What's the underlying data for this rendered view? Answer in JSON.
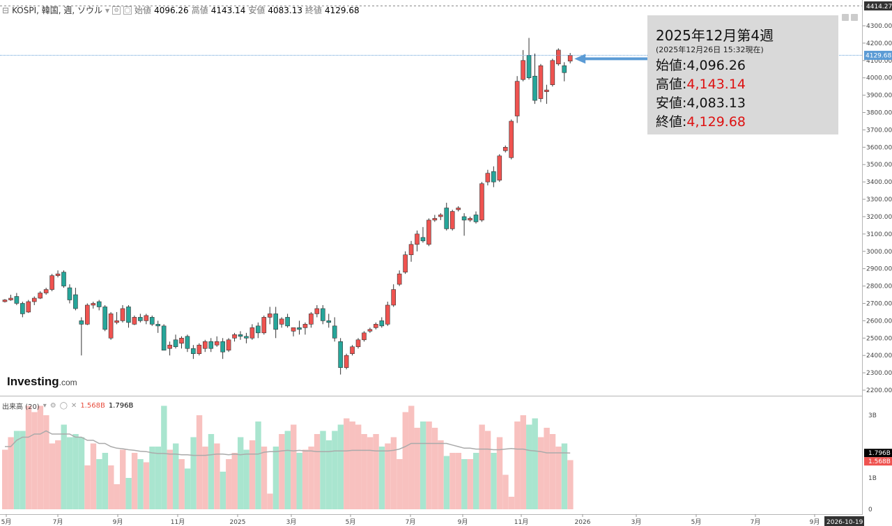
{
  "header": {
    "symbol": "KOSPI, 韓国, 週, ソウル",
    "open_label": "始値",
    "open": "4096.26",
    "high_label": "高値",
    "high": "4143.14",
    "low_label": "安値",
    "low": "4083.13",
    "close_label": "終値",
    "close": "4129.68"
  },
  "volume_header": {
    "label": "出来高 (20)",
    "vol": "1.568B",
    "ma": "1.796B"
  },
  "logo": {
    "main": "Investing",
    "suffix": ".com"
  },
  "info_box": {
    "title": "2025年12月第4週",
    "subtitle": "(2025年12月26日 15:32現在)",
    "open_label": "始値:",
    "open": "4,096.26",
    "high_label": "高値:",
    "high": "4,143.14",
    "low_label": "安値:",
    "low": "4,083.13",
    "close_label": "終値:",
    "close": "4,129.68"
  },
  "price_axis": {
    "top_label": "4414.27",
    "current_label": "4129.68",
    "ticks": [
      "4300.00",
      "4200.00",
      "4100.00",
      "4000.00",
      "3900.00",
      "3800.00",
      "3700.00",
      "3600.00",
      "3500.00",
      "3400.00",
      "3300.00",
      "3200.00",
      "3100.00",
      "3000.00",
      "2900.00",
      "2800.00",
      "2700.00",
      "2600.00",
      "2500.00",
      "2400.00",
      "2300.00",
      "2200.00"
    ]
  },
  "volume_axis": {
    "ticks": [
      "3B",
      "1B",
      "0"
    ],
    "ma_label": "1.796B",
    "vol_label": "1.568B"
  },
  "time_axis": {
    "labels": [
      "5月",
      "7月",
      "9月",
      "11月",
      "2025",
      "3月",
      "5月",
      "7月",
      "9月",
      "11月",
      "2026",
      "3月",
      "5月",
      "7月",
      "9月"
    ],
    "current_label": "2026-10-19"
  },
  "colors": {
    "up": "#ef5350",
    "down": "#26a69a",
    "vol_up": "#f8c1bf",
    "vol_down": "#a9e5cf",
    "arrow": "#5b9bd5"
  },
  "chart_data": {
    "type": "candlestick",
    "title": "KOSPI, 韓国, 週, ソウル",
    "ylim": [
      2200,
      4400
    ],
    "volume_ylim": [
      0,
      3.5
    ],
    "volume_unit": "B",
    "candles": [
      {
        "o": 2710,
        "h": 2725,
        "l": 2705,
        "c": 2720,
        "v": 1.9
      },
      {
        "o": 2720,
        "h": 2750,
        "l": 2715,
        "c": 2730,
        "v": 2.3
      },
      {
        "o": 2740,
        "h": 2760,
        "l": 2690,
        "c": 2700,
        "v": 2.5
      },
      {
        "o": 2700,
        "h": 2710,
        "l": 2620,
        "c": 2640,
        "v": 2.5
      },
      {
        "o": 2650,
        "h": 2720,
        "l": 2645,
        "c": 2710,
        "v": 3.3
      },
      {
        "o": 2710,
        "h": 2740,
        "l": 2690,
        "c": 2730,
        "v": 3.1
      },
      {
        "o": 2730,
        "h": 2770,
        "l": 2725,
        "c": 2760,
        "v": 3.3
      },
      {
        "o": 2760,
        "h": 2790,
        "l": 2750,
        "c": 2780,
        "v": 3.0
      },
      {
        "o": 2780,
        "h": 2870,
        "l": 2770,
        "c": 2860,
        "v": 2.1
      },
      {
        "o": 2860,
        "h": 2890,
        "l": 2850,
        "c": 2870,
        "v": 2.2
      },
      {
        "o": 2880,
        "h": 2890,
        "l": 2790,
        "c": 2800,
        "v": 2.7
      },
      {
        "o": 2790,
        "h": 2810,
        "l": 2700,
        "c": 2720,
        "v": 2.3
      },
      {
        "o": 2750,
        "h": 2790,
        "l": 2660,
        "c": 2670,
        "v": 2.4
      },
      {
        "o": 2600,
        "h": 2620,
        "l": 2400,
        "c": 2580,
        "v": 2.3
      },
      {
        "o": 2580,
        "h": 2700,
        "l": 2575,
        "c": 2690,
        "v": 1.4
      },
      {
        "o": 2690,
        "h": 2710,
        "l": 2670,
        "c": 2700,
        "v": 2.1
      },
      {
        "o": 2710,
        "h": 2720,
        "l": 2660,
        "c": 2680,
        "v": 1.6
      },
      {
        "o": 2680,
        "h": 2690,
        "l": 2540,
        "c": 2550,
        "v": 1.8
      },
      {
        "o": 2500,
        "h": 2650,
        "l": 2490,
        "c": 2640,
        "v": 1.4
      },
      {
        "o": 2590,
        "h": 2650,
        "l": 2580,
        "c": 2600,
        "v": 0.8
      },
      {
        "o": 2600,
        "h": 2690,
        "l": 2590,
        "c": 2670,
        "v": 1.9
      },
      {
        "o": 2680,
        "h": 2690,
        "l": 2560,
        "c": 2590,
        "v": 1.0
      },
      {
        "o": 2580,
        "h": 2630,
        "l": 2575,
        "c": 2620,
        "v": 1.8
      },
      {
        "o": 2620,
        "h": 2640,
        "l": 2590,
        "c": 2600,
        "v": 1.6
      },
      {
        "o": 2600,
        "h": 2640,
        "l": 2580,
        "c": 2630,
        "v": 1.5
      },
      {
        "o": 2620,
        "h": 2630,
        "l": 2570,
        "c": 2580,
        "v": 2.0
      },
      {
        "o": 2580,
        "h": 2600,
        "l": 2530,
        "c": 2570,
        "v": 2.0
      },
      {
        "o": 2570,
        "h": 2580,
        "l": 2430,
        "c": 2430,
        "v": 3.3
      },
      {
        "o": 2440,
        "h": 2480,
        "l": 2400,
        "c": 2460,
        "v": 1.9
      },
      {
        "o": 2490,
        "h": 2520,
        "l": 2440,
        "c": 2450,
        "v": 2.1
      },
      {
        "o": 2470,
        "h": 2510,
        "l": 2440,
        "c": 2500,
        "v": 1.6
      },
      {
        "o": 2510,
        "h": 2520,
        "l": 2420,
        "c": 2440,
        "v": 1.3
      },
      {
        "o": 2440,
        "h": 2460,
        "l": 2380,
        "c": 2410,
        "v": 2.3
      },
      {
        "o": 2410,
        "h": 2470,
        "l": 2400,
        "c": 2460,
        "v": 3.0
      },
      {
        "o": 2440,
        "h": 2490,
        "l": 2420,
        "c": 2480,
        "v": 2.0
      },
      {
        "o": 2480,
        "h": 2500,
        "l": 2420,
        "c": 2440,
        "v": 2.4
      },
      {
        "o": 2460,
        "h": 2510,
        "l": 2450,
        "c": 2480,
        "v": 2.1
      },
      {
        "o": 2480,
        "h": 2500,
        "l": 2380,
        "c": 2420,
        "v": 1.2
      },
      {
        "o": 2430,
        "h": 2500,
        "l": 2420,
        "c": 2490,
        "v": 1.6
      },
      {
        "o": 2500,
        "h": 2530,
        "l": 2480,
        "c": 2520,
        "v": 1.8
      },
      {
        "o": 2520,
        "h": 2540,
        "l": 2490,
        "c": 2510,
        "v": 2.3
      },
      {
        "o": 2510,
        "h": 2530,
        "l": 2470,
        "c": 2500,
        "v": 1.9
      },
      {
        "o": 2500,
        "h": 2580,
        "l": 2490,
        "c": 2560,
        "v": 2.2
      },
      {
        "o": 2570,
        "h": 2590,
        "l": 2500,
        "c": 2530,
        "v": 2.8
      },
      {
        "o": 2530,
        "h": 2630,
        "l": 2520,
        "c": 2620,
        "v": 2.0
      },
      {
        "o": 2620,
        "h": 2680,
        "l": 2580,
        "c": 2640,
        "v": 0.5
      },
      {
        "o": 2640,
        "h": 2680,
        "l": 2500,
        "c": 2550,
        "v": 2.0
      },
      {
        "o": 2580,
        "h": 2620,
        "l": 2560,
        "c": 2610,
        "v": 2.4
      },
      {
        "o": 2620,
        "h": 2640,
        "l": 2560,
        "c": 2570,
        "v": 2.5
      },
      {
        "o": 2540,
        "h": 2560,
        "l": 2510,
        "c": 2560,
        "v": 2.7
      },
      {
        "o": 2560,
        "h": 2600,
        "l": 2520,
        "c": 2550,
        "v": 1.8
      },
      {
        "o": 2560,
        "h": 2590,
        "l": 2520,
        "c": 2580,
        "v": 1.9
      },
      {
        "o": 2580,
        "h": 2650,
        "l": 2560,
        "c": 2640,
        "v": 2.0
      },
      {
        "o": 2640,
        "h": 2690,
        "l": 2620,
        "c": 2670,
        "v": 2.4
      },
      {
        "o": 2670,
        "h": 2690,
        "l": 2580,
        "c": 2600,
        "v": 2.5
      },
      {
        "o": 2600,
        "h": 2640,
        "l": 2560,
        "c": 2590,
        "v": 2.2
      },
      {
        "o": 2570,
        "h": 2620,
        "l": 2480,
        "c": 2500,
        "v": 2.5
      },
      {
        "o": 2480,
        "h": 2500,
        "l": 2290,
        "c": 2330,
        "v": 2.7
      },
      {
        "o": 2330,
        "h": 2410,
        "l": 2320,
        "c": 2400,
        "v": 2.9
      },
      {
        "o": 2410,
        "h": 2460,
        "l": 2400,
        "c": 2450,
        "v": 2.8
      },
      {
        "o": 2450,
        "h": 2500,
        "l": 2440,
        "c": 2490,
        "v": 2.7
      },
      {
        "o": 2490,
        "h": 2540,
        "l": 2480,
        "c": 2530,
        "v": 2.4
      },
      {
        "o": 2540,
        "h": 2560,
        "l": 2530,
        "c": 2550,
        "v": 2.3
      },
      {
        "o": 2560,
        "h": 2590,
        "l": 2550,
        "c": 2580,
        "v": 2.4
      },
      {
        "o": 2600,
        "h": 2620,
        "l": 2560,
        "c": 2570,
        "v": 2.0
      },
      {
        "o": 2580,
        "h": 2710,
        "l": 2570,
        "c": 2690,
        "v": 2.1
      },
      {
        "o": 2690,
        "h": 2810,
        "l": 2680,
        "c": 2780,
        "v": 2.3
      },
      {
        "o": 2810,
        "h": 2890,
        "l": 2800,
        "c": 2870,
        "v": 1.6
      },
      {
        "o": 2880,
        "h": 3000,
        "l": 2870,
        "c": 2980,
        "v": 3.1
      },
      {
        "o": 2980,
        "h": 3060,
        "l": 2940,
        "c": 3040,
        "v": 3.3
      },
      {
        "o": 3040,
        "h": 3120,
        "l": 3000,
        "c": 3100,
        "v": 2.6
      },
      {
        "o": 3080,
        "h": 3140,
        "l": 3050,
        "c": 3060,
        "v": 2.8
      },
      {
        "o": 3040,
        "h": 3190,
        "l": 3030,
        "c": 3180,
        "v": 2.8
      },
      {
        "o": 3180,
        "h": 3210,
        "l": 3170,
        "c": 3190,
        "v": 2.6
      },
      {
        "o": 3200,
        "h": 3220,
        "l": 3180,
        "c": 3210,
        "v": 2.2
      },
      {
        "o": 3250,
        "h": 3280,
        "l": 3120,
        "c": 3130,
        "v": 1.7
      },
      {
        "o": 3130,
        "h": 3240,
        "l": 3120,
        "c": 3230,
        "v": 1.8
      },
      {
        "o": 3240,
        "h": 3260,
        "l": 3230,
        "c": 3250,
        "v": 1.8
      },
      {
        "o": 3200,
        "h": 3220,
        "l": 3090,
        "c": 3180,
        "v": 1.6
      },
      {
        "o": 3180,
        "h": 3200,
        "l": 3170,
        "c": 3190,
        "v": 1.6
      },
      {
        "o": 3210,
        "h": 3230,
        "l": 3160,
        "c": 3170,
        "v": 1.8
      },
      {
        "o": 3180,
        "h": 3400,
        "l": 3170,
        "c": 3390,
        "v": 2.7
      },
      {
        "o": 3400,
        "h": 3470,
        "l": 3380,
        "c": 3450,
        "v": 2.5
      },
      {
        "o": 3460,
        "h": 3490,
        "l": 3370,
        "c": 3400,
        "v": 1.8
      },
      {
        "o": 3410,
        "h": 3560,
        "l": 3400,
        "c": 3550,
        "v": 2.3
      },
      {
        "o": 3580,
        "h": 3610,
        "l": 3570,
        "c": 3600,
        "v": 1.1
      },
      {
        "o": 3540,
        "h": 3760,
        "l": 3530,
        "c": 3750,
        "v": 0.4
      },
      {
        "o": 3780,
        "h": 4010,
        "l": 3740,
        "c": 3980,
        "v": 2.8
      },
      {
        "o": 3990,
        "h": 4160,
        "l": 3980,
        "c": 4100,
        "v": 3.0
      },
      {
        "o": 4130,
        "h": 4230,
        "l": 3990,
        "c": 4000,
        "v": 2.7
      },
      {
        "o": 4010,
        "h": 4140,
        "l": 3850,
        "c": 3870,
        "v": 2.9
      },
      {
        "o": 3880,
        "h": 4080,
        "l": 3860,
        "c": 4070,
        "v": 2.3
      },
      {
        "o": 3920,
        "h": 3960,
        "l": 3850,
        "c": 3930,
        "v": 2.6
      },
      {
        "o": 3960,
        "h": 4110,
        "l": 3950,
        "c": 4100,
        "v": 2.4
      },
      {
        "o": 4080,
        "h": 4170,
        "l": 4070,
        "c": 4160,
        "v": 2.0
      },
      {
        "o": 4070,
        "h": 4090,
        "l": 3980,
        "c": 4030,
        "v": 2.1
      },
      {
        "o": 4096.26,
        "h": 4143.14,
        "l": 4083.13,
        "c": 4129.68,
        "v": 1.568
      }
    ],
    "volume_ma": [
      2.0,
      2.0,
      2.2,
      2.3,
      2.3,
      2.4,
      2.4,
      2.5,
      2.4,
      2.4,
      2.4,
      2.4,
      2.3,
      2.3,
      2.2,
      2.2,
      2.1,
      2.1,
      2.0,
      1.95,
      1.93,
      1.9,
      1.88,
      1.85,
      1.84,
      1.8,
      1.78,
      1.78,
      1.76,
      1.76,
      1.74,
      1.74,
      1.72,
      1.72,
      1.72,
      1.74,
      1.76,
      1.76,
      1.74,
      1.76,
      1.74,
      1.76,
      1.76,
      1.76,
      1.82,
      1.84,
      1.84,
      1.86,
      1.88,
      1.86,
      1.88,
      1.86,
      1.86,
      1.84,
      1.84,
      1.84,
      1.86,
      1.86,
      1.86,
      1.88,
      1.88,
      1.88,
      1.88,
      1.86,
      1.86,
      1.86,
      1.88,
      1.92,
      2.0,
      2.1,
      2.1,
      2.1,
      2.1,
      2.1,
      2.1,
      2.1,
      2.05,
      2.0,
      1.95,
      1.95,
      1.92,
      1.92,
      1.92,
      1.9,
      1.9,
      1.92,
      1.94,
      1.92,
      1.92,
      1.88,
      1.86,
      1.84,
      1.8,
      1.8,
      1.8,
      1.8,
      1.796
    ]
  }
}
